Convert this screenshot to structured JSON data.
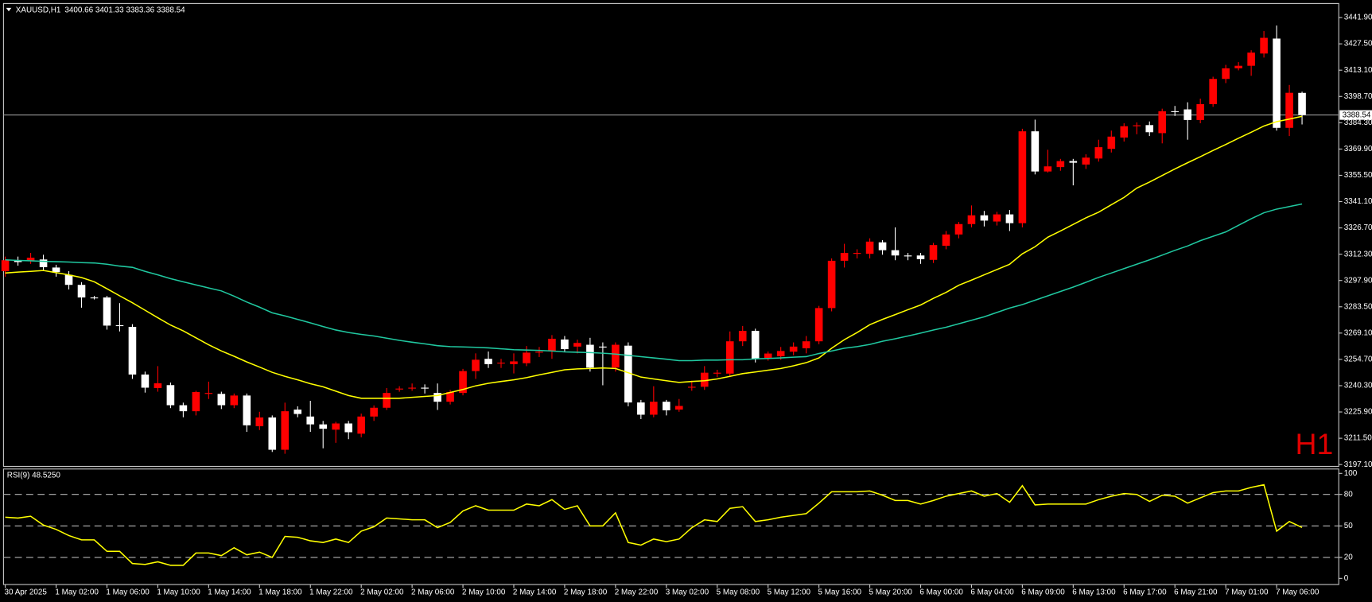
{
  "chart_data": [
    {
      "type": "candlestick",
      "title": "XAUUSD,H1",
      "ohlc_label": "3400.66 3401.33 3383.36 3388.54",
      "timeframe_label": "H1",
      "categories": [
        "30 Apr 2025",
        null,
        null,
        null,
        "1 May 02:00",
        null,
        null,
        null,
        "1 May 06:00",
        null,
        null,
        null,
        "1 May 10:00",
        null,
        null,
        null,
        "1 May 14:00",
        null,
        null,
        null,
        "1 May 18:00",
        null,
        null,
        null,
        "1 May 22:00",
        null,
        null,
        null,
        "2 May 02:00",
        null,
        null,
        null,
        "2 May 06:00",
        null,
        null,
        null,
        "2 May 10:00",
        null,
        null,
        null,
        "2 May 14:00",
        null,
        null,
        null,
        "2 May 18:00",
        null,
        null,
        null,
        "2 May 22:00",
        null,
        null,
        null,
        "3 May 02:00",
        null,
        null,
        null,
        "5 May 08:00",
        null,
        null,
        null,
        "5 May 12:00",
        null,
        null,
        null,
        "5 May 16:00",
        null,
        null,
        null,
        "5 May 20:00",
        null,
        null,
        null,
        "6 May 00:00",
        null,
        null,
        null,
        "6 May 04:00",
        null,
        null,
        null,
        "6 May 09:00",
        null,
        null,
        null,
        "6 May 13:00",
        null,
        null,
        null,
        "6 May 17:00",
        null,
        null,
        null,
        "6 May 21:00",
        null,
        null,
        null,
        "7 May 01:00",
        null,
        null,
        null,
        "7 May 06:00",
        null,
        null
      ],
      "open": [
        3303,
        3309.0,
        3308.5,
        3309.4,
        3305,
        3301,
        3295.5,
        3288.6,
        3288.6,
        3273.4,
        3272.5,
        3246.4,
        3239.0,
        3240.6,
        3229.6,
        3226.3,
        3235.8,
        3235.8,
        3229.6,
        3234.9,
        3218.1,
        3222.9,
        3205.2,
        3227.2,
        3223.4,
        3219.1,
        3216.2,
        3219.6,
        3214.0,
        3223.4,
        3228.2,
        3238.2,
        3238.7,
        3239.2,
        3236.3,
        3231.5,
        3236.3,
        3248.3,
        3255.0,
        3252.6,
        3252.1,
        3252.6,
        3258.4,
        3259.3,
        3265.6,
        3261.7,
        3262.7,
        3261.7,
        3250.2,
        3262.2,
        3231.1,
        3224.4,
        3231.5,
        3227.2,
        3239.2,
        3239.7,
        3246.9,
        3246.9,
        3264.6,
        3270.3,
        3255.5,
        3256.4,
        3258.9,
        3260.8,
        3264.6,
        3282.8,
        3308.7,
        3312.5,
        3312.5,
        3318.8,
        3314.5,
        3311.6,
        3311.6,
        3309.2,
        3316.9,
        3323.1,
        3328.8,
        3333.6,
        3330.2,
        3334.1,
        3329.3,
        3379.6,
        3357.6,
        3360.0,
        3363.3,
        3361.4,
        3364.7,
        3370.0,
        3376.2,
        3382.4,
        3383.0,
        3378.6,
        3390.6,
        3391.6,
        3385.8,
        3394.5,
        3408.3,
        3414.1,
        3415.5,
        3422.2,
        3430.4,
        3381.5,
        3400.66
      ],
      "high": [
        3311,
        3311,
        3313,
        3312,
        3306.5,
        3303,
        3297,
        3289.5,
        3289.5,
        3285.5,
        3274,
        3248,
        3251,
        3242,
        3231,
        3237.5,
        3242.5,
        3237,
        3236,
        3236,
        3226,
        3224,
        3231,
        3229,
        3232,
        3221,
        3220.5,
        3221,
        3225,
        3229.5,
        3239,
        3240,
        3241.5,
        3241,
        3241.5,
        3238,
        3249.5,
        3258,
        3259,
        3255,
        3258,
        3262,
        3261.5,
        3268,
        3267.5,
        3265.5,
        3266.5,
        3264,
        3264,
        3264,
        3232.5,
        3240,
        3232.5,
        3233,
        3243,
        3251,
        3249,
        3270,
        3273,
        3271.5,
        3259,
        3261.5,
        3264,
        3267.5,
        3284,
        3310,
        3318,
        3315,
        3321,
        3320,
        3327,
        3313,
        3313,
        3318.5,
        3325,
        3330,
        3339,
        3336,
        3335.5,
        3336.5,
        3381,
        3386,
        3369.5,
        3364.5,
        3364.5,
        3367,
        3375,
        3380,
        3384,
        3384.5,
        3385,
        3392,
        3393.5,
        3395.5,
        3397.5,
        3409.5,
        3416,
        3417.5,
        3424,
        3434.5,
        3437.5,
        3405,
        3401.33
      ],
      "low": [
        3300,
        3306,
        3307,
        3303,
        3300,
        3293,
        3283,
        3287.5,
        3271,
        3270,
        3244,
        3236.5,
        3237,
        3228,
        3223,
        3224,
        3233,
        3227.5,
        3228,
        3215,
        3216,
        3204,
        3203,
        3223,
        3215,
        3206,
        3209,
        3211,
        3212,
        3221,
        3227,
        3237,
        3237.5,
        3236,
        3227,
        3230,
        3235,
        3244,
        3250,
        3250,
        3247,
        3251,
        3256,
        3255,
        3259,
        3258,
        3248,
        3240.5,
        3248,
        3229,
        3222,
        3223,
        3224,
        3226,
        3237.5,
        3238,
        3245,
        3245,
        3262,
        3253,
        3254,
        3254.5,
        3257,
        3258,
        3263,
        3281,
        3305,
        3310,
        3310,
        3312,
        3309,
        3309,
        3307,
        3307.5,
        3315,
        3321,
        3327,
        3327.5,
        3328,
        3325,
        3327,
        3356,
        3357,
        3358,
        3350,
        3359,
        3363,
        3368,
        3374,
        3378,
        3377,
        3373,
        3388,
        3375,
        3384,
        3393,
        3406,
        3413,
        3410,
        3420,
        3380,
        3377,
        3383.36
      ],
      "close": [
        3309,
        3308.0,
        3310.4,
        3305.2,
        3302.5,
        3295.5,
        3288.6,
        3288.2,
        3273.2,
        3273.0,
        3246.4,
        3239.2,
        3241.6,
        3229.6,
        3226.3,
        3236.8,
        3236.3,
        3229.6,
        3234.9,
        3218.6,
        3222.9,
        3205.2,
        3226.3,
        3224.8,
        3219.1,
        3216.7,
        3219.6,
        3214.8,
        3223.4,
        3228.2,
        3236.3,
        3238.7,
        3239.2,
        3238.7,
        3231.5,
        3236.8,
        3248.3,
        3254.5,
        3252.1,
        3252.9,
        3253.6,
        3258.4,
        3258.9,
        3266.0,
        3260.3,
        3263.7,
        3250.2,
        3261.2,
        3262.7,
        3231.1,
        3224.4,
        3231.5,
        3226.8,
        3229.2,
        3239.7,
        3247.4,
        3247.4,
        3264.6,
        3270.3,
        3255.0,
        3257.9,
        3259.3,
        3261.7,
        3264.6,
        3282.8,
        3308.7,
        3313.0,
        3313.0,
        3319.2,
        3314.5,
        3311.6,
        3311.1,
        3309.6,
        3317.3,
        3323.1,
        3328.8,
        3333.6,
        3330.7,
        3334.1,
        3329.3,
        3379.6,
        3357.6,
        3360.4,
        3363.3,
        3362.4,
        3365.2,
        3370.9,
        3376.7,
        3382.4,
        3382.9,
        3379.1,
        3390.6,
        3390.2,
        3385.8,
        3394.5,
        3408.3,
        3414.1,
        3415.5,
        3422.7,
        3430.8,
        3381.5,
        3400.7,
        3388.54
      ],
      "up_color": "#ff0000",
      "down_color": "#ffffff",
      "series": [
        {
          "color": "#ffff00",
          "values": [
            3302.0,
            3302.5,
            3302.9,
            3303.4,
            3302.2,
            3301.0,
            3299.5,
            3297.2,
            3293.4,
            3289.5,
            3285.7,
            3281.6,
            3277.5,
            3273.5,
            3270.3,
            3266.5,
            3262.7,
            3259.3,
            3256.4,
            3253.3,
            3250.5,
            3247.6,
            3245.4,
            3243.5,
            3241.4,
            3239.7,
            3237.3,
            3234.9,
            3233.4,
            3233.4,
            3233.4,
            3233.4,
            3233.9,
            3234.4,
            3234.9,
            3236.6,
            3238.2,
            3240.2,
            3241.6,
            3242.6,
            3243.5,
            3244.7,
            3246.2,
            3247.6,
            3249.0,
            3249.5,
            3249.7,
            3250.0,
            3249.7,
            3247.4,
            3245.0,
            3244.0,
            3243.0,
            3242.1,
            3242.6,
            3243.0,
            3244.0,
            3245.4,
            3246.9,
            3247.8,
            3248.8,
            3249.7,
            3251.2,
            3252.9,
            3255.5,
            3260.8,
            3265.5,
            3269.4,
            3273.7,
            3276.6,
            3279.2,
            3281.9,
            3284.5,
            3288.1,
            3291.4,
            3295.3,
            3298.1,
            3301.0,
            3303.9,
            3306.8,
            3312.5,
            3316.4,
            3321.6,
            3325.0,
            3328.6,
            3332.2,
            3335.3,
            3339.4,
            3343.4,
            3348.5,
            3351.8,
            3355.4,
            3359.0,
            3362.4,
            3365.7,
            3369.1,
            3372.4,
            3375.8,
            3379.1,
            3382.5,
            3384.9,
            3386.3,
            3387.8
          ]
        },
        {
          "color": "#20c8a0",
          "values": [
            3309.2,
            3308.9,
            3308.7,
            3308.4,
            3308.2,
            3308.0,
            3307.7,
            3307.5,
            3306.8,
            3305.8,
            3305.1,
            3302.9,
            3301.0,
            3298.9,
            3297.2,
            3295.5,
            3293.8,
            3292.2,
            3289.3,
            3286.1,
            3283.3,
            3280.2,
            3278.5,
            3276.6,
            3274.7,
            3272.7,
            3270.8,
            3269.4,
            3268.4,
            3267.5,
            3266.3,
            3265.1,
            3264.1,
            3263.2,
            3262.2,
            3261.7,
            3261.5,
            3261.3,
            3261.0,
            3260.5,
            3260.0,
            3259.8,
            3259.6,
            3259.3,
            3258.8,
            3258.6,
            3258.4,
            3258.1,
            3257.6,
            3256.9,
            3256.2,
            3255.5,
            3254.8,
            3254.0,
            3254.0,
            3254.3,
            3254.3,
            3254.5,
            3254.5,
            3255.0,
            3255.2,
            3255.5,
            3255.9,
            3256.2,
            3257.9,
            3259.3,
            3260.8,
            3261.7,
            3262.9,
            3264.6,
            3266.0,
            3267.5,
            3269.1,
            3270.8,
            3272.3,
            3274.2,
            3276.1,
            3278.0,
            3280.4,
            3282.8,
            3284.7,
            3287.1,
            3289.5,
            3291.9,
            3294.3,
            3296.9,
            3299.6,
            3302.0,
            3304.4,
            3306.8,
            3309.2,
            3311.8,
            3314.4,
            3316.8,
            3319.7,
            3322.1,
            3324.5,
            3328.1,
            3331.7,
            3335.0,
            3337.0,
            3338.4,
            3339.8
          ]
        }
      ],
      "current_price": 3388.54,
      "ylim": [
        3196.1,
        3449.6
      ],
      "yticks": [
        {
          "value": 3441.9,
          "label": "3441.90"
        },
        {
          "value": 3427.5,
          "label": "3427.50"
        },
        {
          "value": 3413.1,
          "label": "3413.10"
        },
        {
          "value": 3398.7,
          "label": "3398.70"
        },
        {
          "value": 3384.3,
          "label": "3384.30"
        },
        {
          "value": 3369.9,
          "label": "3369.90"
        },
        {
          "value": 3355.5,
          "label": "3355.50"
        },
        {
          "value": 3341.1,
          "label": "3341.10"
        },
        {
          "value": 3326.7,
          "label": "3326.70"
        },
        {
          "value": 3312.3,
          "label": "3312.30"
        },
        {
          "value": 3297.9,
          "label": "3297.90"
        },
        {
          "value": 3283.5,
          "label": "3283.50"
        },
        {
          "value": 3269.1,
          "label": "3269.10"
        },
        {
          "value": 3254.7,
          "label": "3254.70"
        },
        {
          "value": 3240.3,
          "label": "3240.30"
        },
        {
          "value": 3225.9,
          "label": "3225.90"
        },
        {
          "value": 3211.5,
          "label": "3211.50"
        },
        {
          "value": 3197.1,
          "label": "3197.10"
        }
      ]
    },
    {
      "type": "line",
      "title": "RSI(9) 48.5250",
      "color": "#ffff00",
      "values": [
        58.3,
        57.5,
        59.2,
        50.8,
        46.7,
        40.8,
        36.7,
        36.7,
        25.8,
        25.8,
        14.2,
        13.3,
        15.8,
        12.5,
        12.5,
        24.2,
        24.2,
        21.7,
        29.2,
        22.5,
        25.0,
        20.0,
        40.0,
        39.2,
        35.8,
        34.2,
        37.5,
        34.2,
        45.0,
        49.2,
        57.5,
        56.7,
        55.8,
        55.8,
        48.3,
        53.3,
        64.2,
        69.2,
        65.0,
        65.0,
        65.0,
        70.8,
        69.2,
        75.0,
        65.8,
        69.2,
        50.0,
        50.0,
        62.5,
        34.2,
        31.7,
        37.5,
        35.0,
        37.5,
        48.3,
        55.8,
        54.2,
        66.7,
        68.3,
        54.2,
        55.8,
        58.3,
        60.0,
        61.7,
        71.7,
        82.5,
        82.5,
        82.5,
        83.3,
        79.2,
        74.2,
        74.2,
        70.8,
        74.2,
        78.3,
        80.8,
        83.3,
        78.3,
        80.8,
        72.5,
        88.3,
        70.0,
        70.8,
        70.8,
        70.8,
        70.8,
        75.0,
        78.3,
        80.8,
        80.0,
        73.3,
        79.2,
        78.3,
        71.7,
        76.7,
        81.7,
        83.3,
        83.3,
        86.7,
        89.2,
        45.0,
        54.2,
        48.525
      ],
      "levels": [
        80,
        50,
        20
      ],
      "ylim": [
        -5.8,
        104.2
      ],
      "yticks": [
        100,
        80,
        50,
        20,
        0
      ]
    }
  ]
}
